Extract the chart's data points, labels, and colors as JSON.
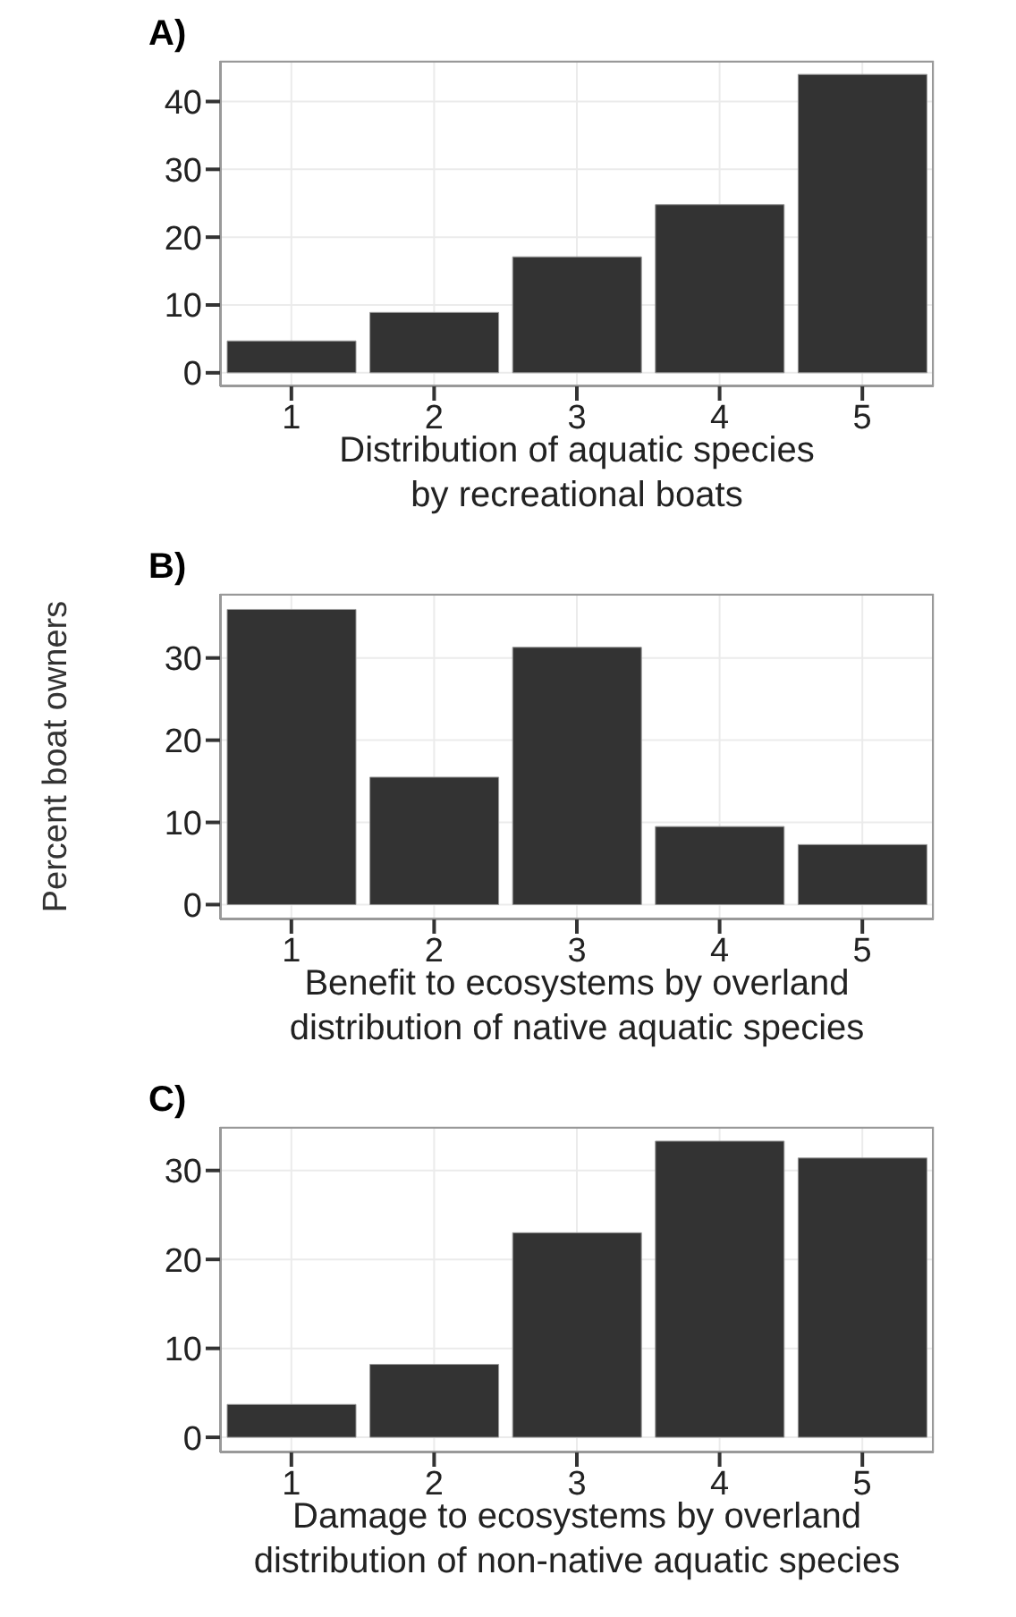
{
  "chart_data": [
    {
      "type": "bar",
      "title": "A)",
      "xlabel": "Distribution of aquatic species\nby recreational boats",
      "categories": [
        "1",
        "2",
        "3",
        "4",
        "5"
      ],
      "values": [
        4.7,
        8.9,
        17.1,
        24.8,
        44.0
      ],
      "color": "#333333",
      "ylim": [
        -2,
        46
      ],
      "yticks": [
        0,
        10,
        20,
        30,
        40
      ],
      "grid": true
    },
    {
      "type": "bar",
      "title": "B)",
      "xlabel": "Benefit to ecosystems by overland\ndistribution of native aquatic species",
      "ylabel": "Percent boat owners",
      "categories": [
        "1",
        "2",
        "3",
        "4",
        "5"
      ],
      "values": [
        35.9,
        15.5,
        31.3,
        9.5,
        7.3
      ],
      "color": "#333333",
      "ylim": [
        -1.8,
        37.8
      ],
      "yticks": [
        0,
        10,
        20,
        30
      ],
      "grid": true
    },
    {
      "type": "bar",
      "title": "C)",
      "xlabel": "Damage to ecosystems by overland\ndistribution of non-native aquatic species",
      "categories": [
        "1",
        "2",
        "3",
        "4",
        "5"
      ],
      "values": [
        3.7,
        8.2,
        23.0,
        33.3,
        31.4
      ],
      "color": "#333333",
      "ylim": [
        -1.7,
        34.9
      ],
      "yticks": [
        0,
        10,
        20,
        30
      ],
      "grid": true
    }
  ]
}
